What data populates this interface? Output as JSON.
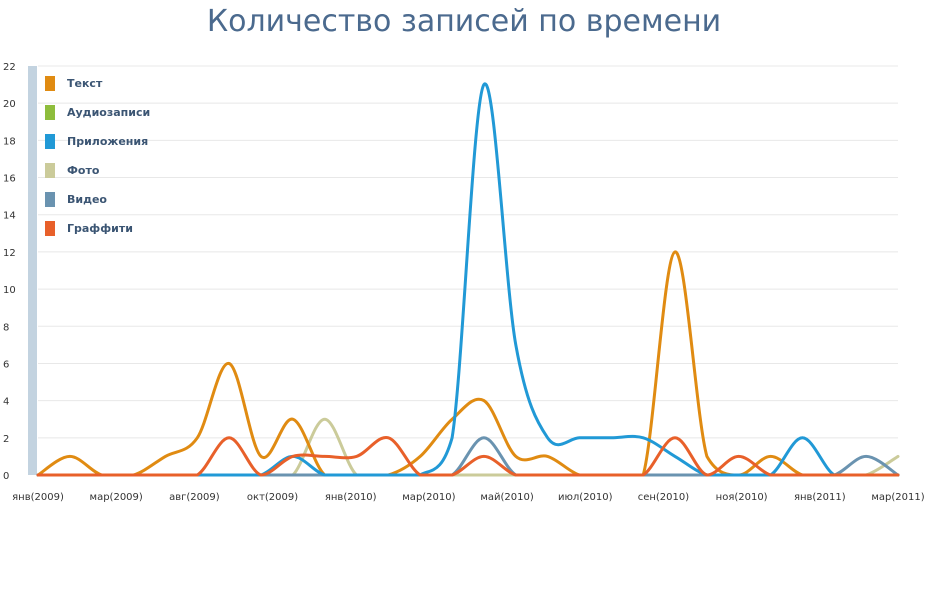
{
  "chart_data": {
    "type": "line",
    "title": "Количество записей по времени",
    "xlabel": "",
    "ylabel": "",
    "ylim": [
      0,
      22
    ],
    "yticks": [
      0,
      2,
      4,
      6,
      8,
      10,
      12,
      14,
      16,
      18,
      20,
      22
    ],
    "x_tick_labels": [
      "янв(2009)",
      "мар(2009)",
      "авг(2009)",
      "окт(2009)",
      "янв(2010)",
      "мар(2010)",
      "май(2010)",
      "июл(2010)",
      "сен(2010)",
      "ноя(2010)",
      "янв(2011)",
      "мар(2011)"
    ],
    "grid": true,
    "legend_position": "top-left",
    "series": [
      {
        "name": "Текст",
        "color": "#e08b12",
        "values": [
          0,
          1,
          0,
          0,
          1,
          2,
          6,
          1,
          3,
          0,
          0,
          0,
          1,
          3,
          4,
          1,
          1,
          0,
          0,
          0,
          12,
          1,
          0,
          1,
          0,
          0,
          0,
          0
        ]
      },
      {
        "name": "Аудиозаписи",
        "color": "#8ebd3c",
        "values": [
          0,
          0,
          0,
          0,
          0,
          0,
          0,
          0,
          0,
          0,
          0,
          0,
          0,
          0,
          0,
          0,
          0,
          0,
          0,
          0,
          0,
          0,
          0,
          0,
          0,
          0,
          0,
          0
        ]
      },
      {
        "name": "Приложения",
        "color": "#2199d6",
        "values": [
          0,
          0,
          0,
          0,
          0,
          0,
          0,
          0,
          1,
          0,
          0,
          0,
          0,
          2,
          21,
          7,
          2,
          2,
          2,
          2,
          1,
          0,
          0,
          0,
          2,
          0,
          0,
          0
        ]
      },
      {
        "name": "Фото",
        "color": "#cbcb9a",
        "values": [
          0,
          0,
          0,
          0,
          0,
          0,
          0,
          0,
          0,
          3,
          0,
          0,
          0,
          0,
          0,
          0,
          0,
          0,
          0,
          0,
          0,
          0,
          0,
          0,
          0,
          0,
          0,
          1
        ]
      },
      {
        "name": "Видео",
        "color": "#6a93b0",
        "values": [
          0,
          0,
          0,
          0,
          0,
          0,
          0,
          0,
          0,
          0,
          0,
          0,
          0,
          0,
          2,
          0,
          0,
          0,
          0,
          0,
          0,
          0,
          0,
          0,
          0,
          0,
          1,
          0
        ]
      },
      {
        "name": "Граффити",
        "color": "#e8602a",
        "values": [
          0,
          0,
          0,
          0,
          0,
          0,
          2,
          0,
          1,
          1,
          1,
          2,
          0,
          0,
          1,
          0,
          0,
          0,
          0,
          0,
          2,
          0,
          1,
          0,
          0,
          0,
          0,
          0
        ]
      }
    ]
  },
  "colors": {
    "title": "#4b6a8e",
    "axis_band": "#c3d3e0",
    "grid": "#e8e8e8"
  }
}
